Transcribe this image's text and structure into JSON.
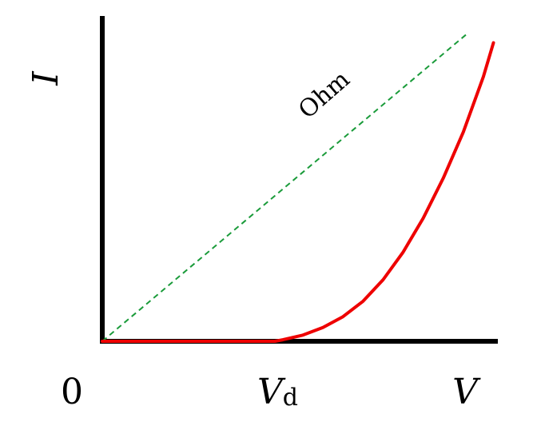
{
  "chart_data": {
    "type": "line",
    "title": "",
    "xlabel": "V",
    "ylabel": "I",
    "origin_label": "0",
    "threshold_label": {
      "main": "V",
      "sub": "d"
    },
    "annotation": "Ohm",
    "xlim": [
      0,
      1
    ],
    "ylim": [
      0,
      1
    ],
    "threshold": 0.43,
    "series": [
      {
        "style": "solid",
        "color": "#ee0000",
        "x": [
          0,
          0.43,
          0.45,
          0.5,
          0.55,
          0.6,
          0.65,
          0.7,
          0.75,
          0.8,
          0.85,
          0.9,
          0.95,
          0.975
        ],
        "y": [
          0,
          0,
          0.005,
          0.02,
          0.045,
          0.08,
          0.13,
          0.2,
          0.29,
          0.4,
          0.53,
          0.68,
          0.86,
          0.97
        ]
      },
      {
        "style": "dashed",
        "color": "#1a9b3a",
        "x": [
          0,
          0.91
        ],
        "y": [
          0,
          1
        ]
      }
    ],
    "grid": false,
    "legend": "none"
  }
}
